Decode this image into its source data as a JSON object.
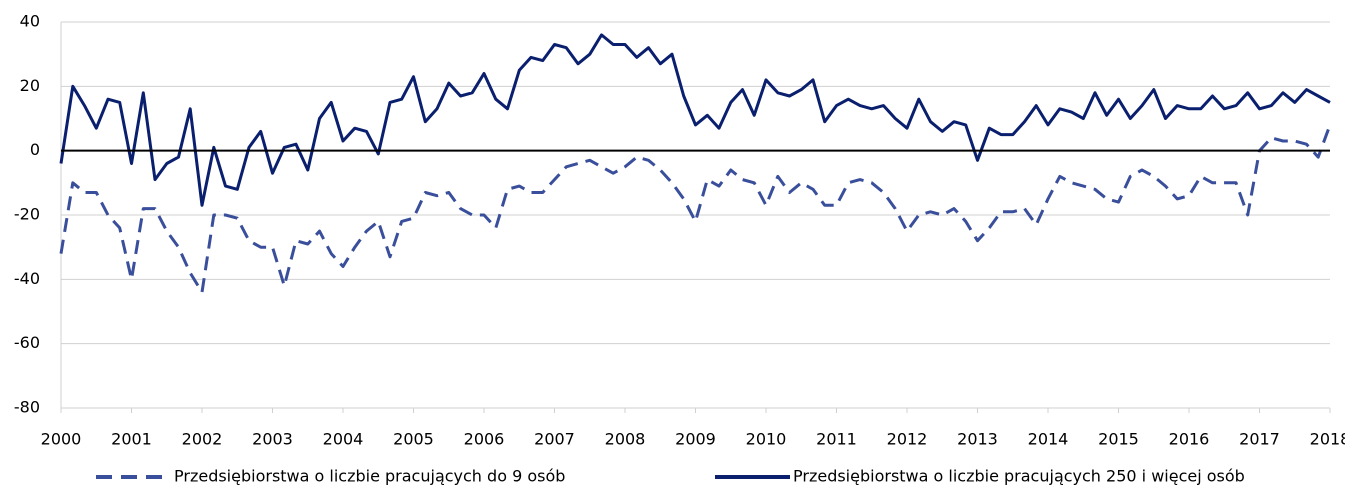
{
  "chart_data": {
    "type": "line",
    "x": [
      2000,
      2000.167,
      2000.333,
      2000.5,
      2000.667,
      2000.833,
      2001,
      2001.167,
      2001.333,
      2001.5,
      2001.667,
      2001.833,
      2002,
      2002.167,
      2002.333,
      2002.5,
      2002.667,
      2002.833,
      2003,
      2003.167,
      2003.333,
      2003.5,
      2003.667,
      2003.833,
      2004,
      2004.167,
      2004.333,
      2004.5,
      2004.667,
      2004.833,
      2005,
      2005.167,
      2005.333,
      2005.5,
      2005.667,
      2005.833,
      2006,
      2006.167,
      2006.333,
      2006.5,
      2006.667,
      2006.833,
      2007,
      2007.167,
      2007.333,
      2007.5,
      2007.667,
      2007.833,
      2008,
      2008.167,
      2008.333,
      2008.5,
      2008.667,
      2008.833,
      2009,
      2009.167,
      2009.333,
      2009.5,
      2009.667,
      2009.833,
      2010,
      2010.167,
      2010.333,
      2010.5,
      2010.667,
      2010.833,
      2011,
      2011.167,
      2011.333,
      2011.5,
      2011.667,
      2011.833,
      2012,
      2012.167,
      2012.333,
      2012.5,
      2012.667,
      2012.833,
      2013,
      2013.167,
      2013.333,
      2013.5,
      2013.667,
      2013.833,
      2014,
      2014.167,
      2014.333,
      2014.5,
      2014.667,
      2014.833,
      2015,
      2015.167,
      2015.333,
      2015.5,
      2015.667,
      2015.833,
      2016,
      2016.167,
      2016.333,
      2016.5,
      2016.667,
      2016.833,
      2017,
      2017.167,
      2017.333,
      2017.5,
      2017.667,
      2017.833,
      2018
    ],
    "series": [
      {
        "name": "Przedsiębiorstwa o liczbie pracujących do 9 osób",
        "color": "#3a4f9b",
        "style": "dashed",
        "values": [
          -32,
          -10,
          -13,
          -13,
          -20,
          -24,
          -40,
          -18,
          -18,
          -25,
          -30,
          -38,
          -44,
          -20,
          -20,
          -21,
          -28,
          -30,
          -30,
          -42,
          -28,
          -29,
          -25,
          -32,
          -36,
          -30,
          -25,
          -22,
          -33,
          -22,
          -21,
          -13,
          -14,
          -13,
          -18,
          -20,
          -20,
          -24,
          -12,
          -11,
          -13,
          -13,
          -9,
          -5,
          -4,
          -3,
          -5,
          -7,
          -5,
          -2,
          -3,
          -6,
          -10,
          -15,
          -22,
          -9,
          -11,
          -6,
          -9,
          -10,
          -17,
          -8,
          -13,
          -10,
          -12,
          -17,
          -17,
          -10,
          -9,
          -10,
          -13,
          -18,
          -25,
          -20,
          -19,
          -20,
          -18,
          -22,
          -28,
          -24,
          -19,
          -19,
          -18,
          -23,
          -15,
          -8,
          -10,
          -11,
          -12,
          -15,
          -16,
          -8,
          -6,
          -8,
          -11,
          -15,
          -14,
          -8,
          -10,
          -10,
          -10,
          -20,
          0,
          4,
          3,
          3,
          2,
          -2,
          8
        ]
      },
      {
        "name": "Przedsiębiorstwa o liczbie pracujących 250 i więcej osób",
        "color": "#0a1f6e",
        "style": "solid",
        "values": [
          -4,
          20,
          14,
          7,
          16,
          15,
          -4,
          18,
          -9,
          -4,
          -2,
          13,
          -17,
          1,
          -11,
          -12,
          1,
          6,
          -7,
          1,
          2,
          -6,
          10,
          15,
          3,
          7,
          6,
          -1,
          15,
          16,
          23,
          9,
          13,
          21,
          17,
          18,
          24,
          16,
          13,
          25,
          29,
          28,
          33,
          32,
          27,
          30,
          36,
          33,
          33,
          29,
          32,
          27,
          30,
          17,
          8,
          11,
          7,
          15,
          19,
          11,
          22,
          18,
          17,
          19,
          22,
          9,
          14,
          16,
          14,
          13,
          14,
          10,
          7,
          16,
          9,
          6,
          9,
          8,
          -3,
          7,
          5,
          5,
          9,
          14,
          8,
          13,
          12,
          10,
          18,
          11,
          16,
          10,
          14,
          19,
          10,
          14,
          13,
          13,
          17,
          13,
          14,
          18,
          13,
          14,
          18,
          15,
          19,
          17,
          15
        ]
      }
    ],
    "xlim": [
      2000,
      2018
    ],
    "xticks": [
      2000,
      2001,
      2002,
      2003,
      2004,
      2005,
      2006,
      2007,
      2008,
      2009,
      2010,
      2011,
      2012,
      2013,
      2014,
      2015,
      2016,
      2017,
      2018
    ],
    "ylim": [
      -80,
      40
    ],
    "yticks": [
      -80,
      -60,
      -40,
      -20,
      0,
      20,
      40
    ],
    "grid": true
  }
}
